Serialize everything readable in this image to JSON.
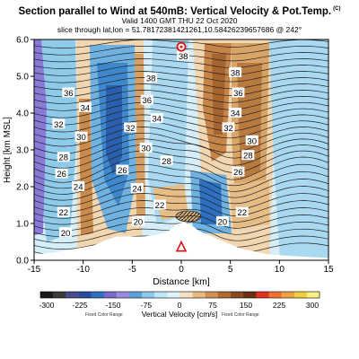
{
  "title": "Section parallel to Wind at 540mB: Vertical Velocity & Pot.Temp.",
  "title_mark": "(C)",
  "subtitle_valid": "Valid 1400 GMT THU 22 Oct 2020",
  "subtitle_slice": "slice through lat,lon = 51.78172381421261,10.58426239657686 @ 242°",
  "chart_data": {
    "type": "heatmap",
    "xlabel": "Distance [km]",
    "ylabel": "Height [km MSL]",
    "xlim": [
      -15,
      15
    ],
    "ylim": [
      0.0,
      6.0
    ],
    "x_ticks": [
      "-15",
      "-10",
      "-5",
      "0",
      "5",
      "10",
      "15"
    ],
    "x_tick_values": [
      -15,
      -10,
      -5,
      0,
      5,
      10,
      15
    ],
    "y_ticks": [
      "0.0",
      "1.0",
      "2.0",
      "3.0",
      "4.0",
      "5.0",
      "6.0"
    ],
    "y_tick_values": [
      0,
      1,
      2,
      3,
      4,
      5,
      6
    ],
    "colorbar": {
      "label": "Vertical Velocity [cm/s]",
      "left_note": "Fixed Color Range",
      "right_note": "Fixed Color Range",
      "tick_labels": [
        "-300",
        "-225",
        "-150",
        "-75",
        "0",
        "75",
        "150",
        "225",
        "300"
      ],
      "colors": [
        "#1a1a1a",
        "#3a3a3a",
        "#4a4a8a",
        "#2a4aa0",
        "#2f6fc0",
        "#7a6ad0",
        "#9a8ae0",
        "#5fa0d8",
        "#8ec8ec",
        "#bfe6f6",
        "#e0f2fa",
        "#f8e0c0",
        "#e8b880",
        "#d09050",
        "#b06a30",
        "#8a4a20",
        "#6a3010",
        "#e03020",
        "#f07030",
        "#f0a040",
        "#f0d040",
        "#f8f080"
      ]
    },
    "theta_labels": [
      {
        "text": "38",
        "x": 0.2,
        "y": 5.55
      },
      {
        "text": "38",
        "x": -3.1,
        "y": 4.95
      },
      {
        "text": "38",
        "x": 5.5,
        "y": 5.1
      },
      {
        "text": "36",
        "x": -11.5,
        "y": 4.55
      },
      {
        "text": "36",
        "x": -3.5,
        "y": 4.35
      },
      {
        "text": "36",
        "x": 5.8,
        "y": 4.55
      },
      {
        "text": "34",
        "x": -9.8,
        "y": 4.15
      },
      {
        "text": "34",
        "x": -2.5,
        "y": 3.85
      },
      {
        "text": "34",
        "x": 5.5,
        "y": 4.0
      },
      {
        "text": "32",
        "x": -12.5,
        "y": 3.7
      },
      {
        "text": "32",
        "x": -5.2,
        "y": 3.6
      },
      {
        "text": "32",
        "x": 4.8,
        "y": 3.6
      },
      {
        "text": "30",
        "x": -10.2,
        "y": 3.35
      },
      {
        "text": "30",
        "x": -3.6,
        "y": 3.05
      },
      {
        "text": "30",
        "x": 7.2,
        "y": 3.25
      },
      {
        "text": "28",
        "x": -12.0,
        "y": 2.8
      },
      {
        "text": "28",
        "x": -1.5,
        "y": 2.7
      },
      {
        "text": "28",
        "x": 6.8,
        "y": 2.85
      },
      {
        "text": "26",
        "x": -12.2,
        "y": 2.35
      },
      {
        "text": "26",
        "x": -6.0,
        "y": 2.45
      },
      {
        "text": "26",
        "x": 5.8,
        "y": 2.4
      },
      {
        "text": "24",
        "x": -10.5,
        "y": 2.0
      },
      {
        "text": "24",
        "x": -4.5,
        "y": 1.95
      },
      {
        "text": "22",
        "x": -12.0,
        "y": 1.3
      },
      {
        "text": "22",
        "x": -2.2,
        "y": 1.5
      },
      {
        "text": "22",
        "x": 6.2,
        "y": 1.3
      },
      {
        "text": "20",
        "x": -11.8,
        "y": 0.75
      },
      {
        "text": "20",
        "x": -4.4,
        "y": 1.05
      },
      {
        "text": "20",
        "x": 4.2,
        "y": 1.05
      }
    ],
    "markers": [
      {
        "type": "triangle",
        "color": "#e01010",
        "x": 0.0,
        "y": 0.35
      },
      {
        "type": "circle",
        "color": "#e01010",
        "x": 0.0,
        "y": 5.8
      }
    ]
  }
}
